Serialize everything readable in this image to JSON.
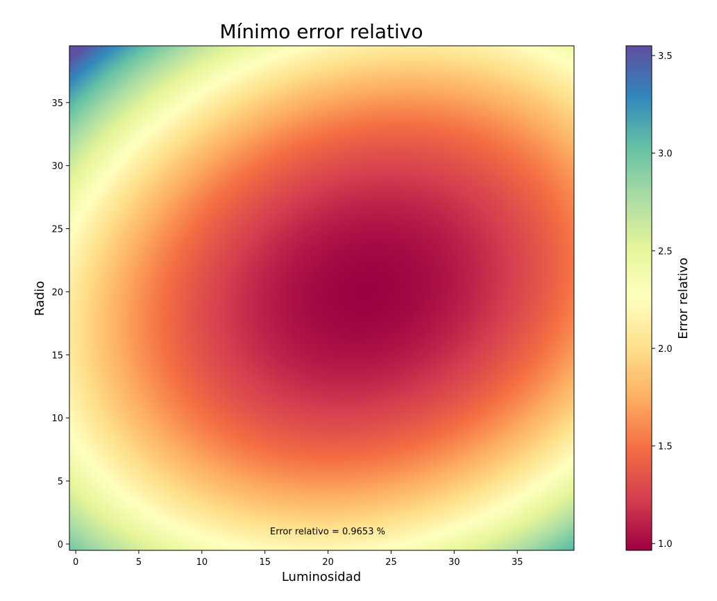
{
  "chart_data": {
    "type": "heatmap",
    "title": "Mínimo error relativo",
    "xlabel": "Luminosidad",
    "ylabel": "Radio",
    "xlim": [
      -0.5,
      39.5
    ],
    "ylim": [
      -0.5,
      39.5
    ],
    "x_ticks": [
      0,
      5,
      10,
      15,
      20,
      25,
      30,
      35
    ],
    "y_ticks": [
      0,
      5,
      10,
      15,
      20,
      25,
      30,
      35
    ],
    "grid": [
      40,
      40
    ],
    "minimum": {
      "x": 23,
      "y": 20,
      "value": 0.9653
    },
    "corner_values": {
      "x0_y0": 2.9,
      "x39_y0": 3.0,
      "x0_y39": 3.55,
      "x39_y39": 2.4
    },
    "annotation": "Error relativo = 0.9653 %",
    "colormap": "Spectral",
    "colorbar": {
      "label": "Error relativo",
      "range": [
        0.9653,
        3.55
      ],
      "ticks": [
        "1.0",
        "1.5",
        "2.0",
        "2.5",
        "3.0",
        "3.5"
      ]
    }
  }
}
